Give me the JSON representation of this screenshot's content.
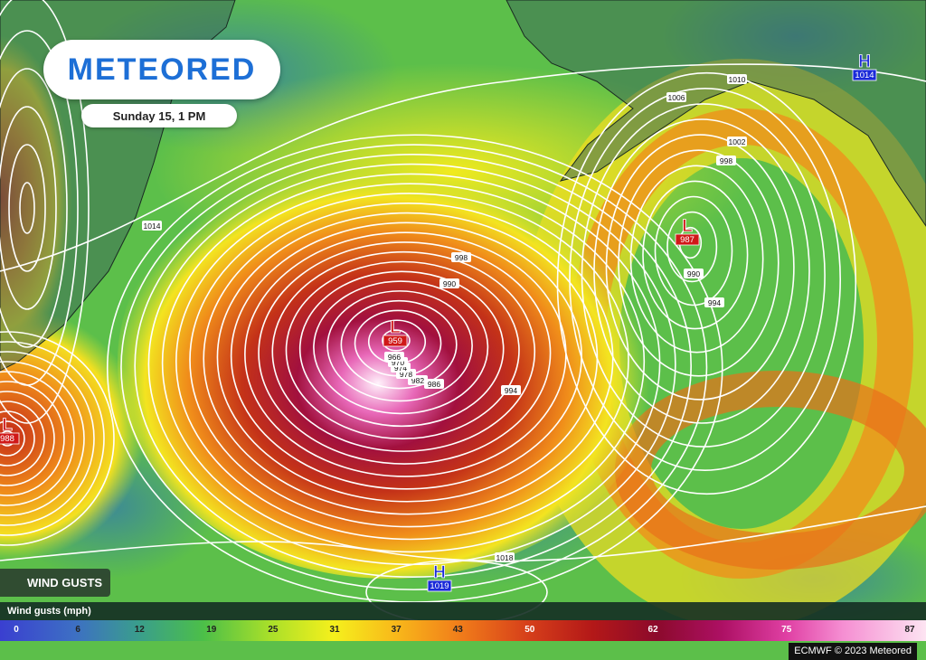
{
  "header": {
    "logo": "METEORED",
    "time": "Sunday 15, 1 PM"
  },
  "pressure_centers": [
    {
      "letter": "L",
      "value": 959
    },
    {
      "letter": "L",
      "value": 987
    },
    {
      "letter": "L",
      "value": 988
    },
    {
      "letter": "H",
      "value": 1014
    },
    {
      "letter": "H",
      "value": 1019
    }
  ],
  "isobar_labels": [
    1014,
    1010,
    1006,
    1002,
    998,
    990,
    994,
    998,
    990,
    994,
    986,
    982,
    978,
    974,
    970,
    966,
    1018
  ],
  "layer_button": "WIND GUSTS",
  "scale": {
    "title": "Wind gusts (mph)",
    "labels": [
      0,
      6,
      12,
      19,
      25,
      31,
      37,
      43,
      50,
      62,
      75,
      87
    ]
  },
  "credit": "ECMWF © 2023 Meteored"
}
